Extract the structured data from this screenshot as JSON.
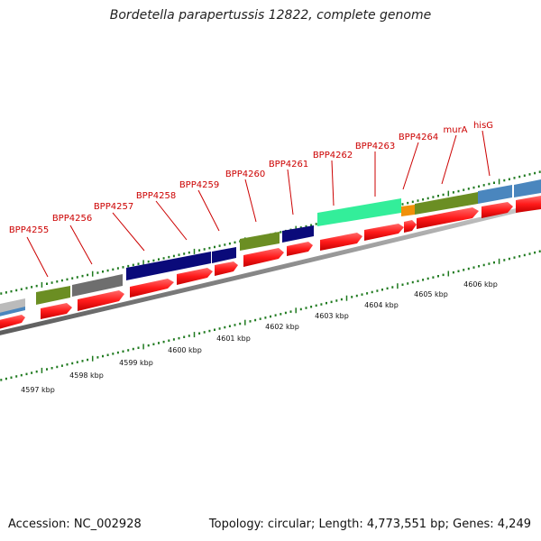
{
  "title": "Bordetella parapertussis 12822, complete genome",
  "genes": [
    {
      "label": "BPP4255"
    },
    {
      "label": "BPP4256"
    },
    {
      "label": "BPP4257"
    },
    {
      "label": "BPP4258"
    },
    {
      "label": "BPP4259"
    },
    {
      "label": "BPP4260"
    },
    {
      "label": "BPP4261"
    },
    {
      "label": "BPP4262"
    },
    {
      "label": "BPP4263"
    },
    {
      "label": "BPP4264"
    },
    {
      "label": "murA"
    },
    {
      "label": "hisG"
    }
  ],
  "scale_labels": [
    "4597 kbp",
    "4598 kbp",
    "4599 kbp",
    "4600 kbp",
    "4601 kbp",
    "4602 kbp",
    "4603 kbp",
    "4604 kbp",
    "4605 kbp",
    "4606 kbp"
  ],
  "footer": {
    "accession": "Accession: NC_002928",
    "summary": "Topology: circular; Length: 4,773,551 bp; Genes: 4,249"
  },
  "colors": {
    "label_red": "#cc0000",
    "cds_red": "#ff1a1a",
    "navy": "#0a0a7a",
    "olive": "#6b8e23",
    "gray": "#6e6e6e",
    "aqua": "#33ee9a",
    "orange": "#f0900a",
    "steel": "#4a86be",
    "tick_green": "#1f7a1f",
    "backbone": "#8a8a8a"
  }
}
